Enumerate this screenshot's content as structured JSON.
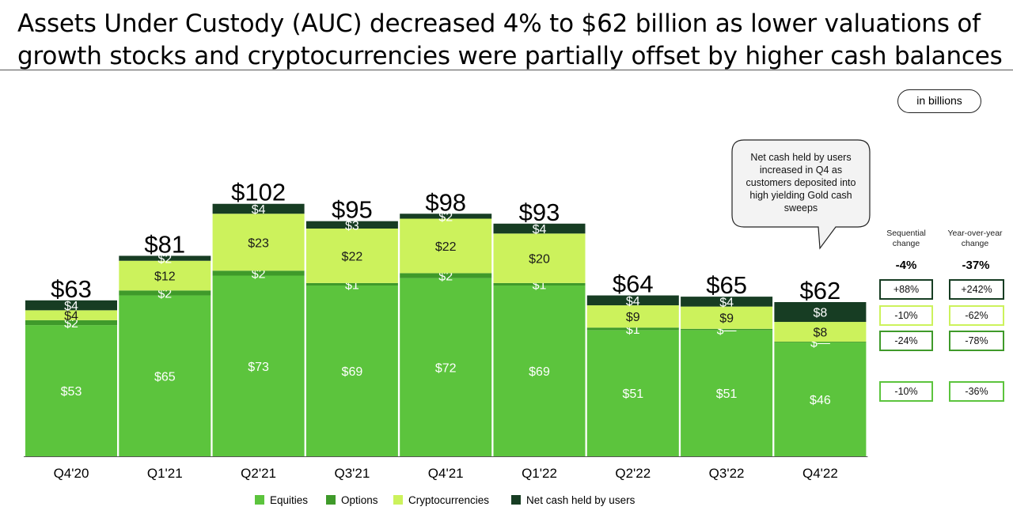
{
  "title": {
    "line1": "Assets Under Custody (AUC) decreased 4% to $62 billion as lower valuations of",
    "line2": "growth stocks and cryptocurrencies were partially offset by higher cash balances"
  },
  "units_label": "in billions",
  "callout": "Net cash held by users increased in Q4 as customers deposited into high yielding Gold cash sweeps",
  "chart_data": {
    "type": "bar",
    "stacked": true,
    "categories": [
      "Q4'20",
      "Q1'21",
      "Q2'21",
      "Q3'21",
      "Q4'21",
      "Q1'22",
      "Q2'22",
      "Q3'22",
      "Q4'22"
    ],
    "totals": [
      "$63",
      "$81",
      "$102",
      "$95",
      "$98",
      "$93",
      "$64",
      "$65",
      "$62"
    ],
    "total_values": [
      63,
      81,
      102,
      95,
      98,
      93,
      64,
      65,
      62
    ],
    "ylim": [
      0,
      110
    ],
    "legend_position": "bottom",
    "series": [
      {
        "name": "Equities",
        "color": "#5cc43d",
        "values": [
          53,
          65,
          73,
          69,
          72,
          69,
          51,
          51,
          46
        ],
        "labels": [
          "$53",
          "$65",
          "$73",
          "$69",
          "$72",
          "$69",
          "$51",
          "$51",
          "$46"
        ]
      },
      {
        "name": "Options",
        "color": "#3f9a2a",
        "values": [
          2,
          2,
          2,
          1,
          2,
          1,
          1,
          0.5,
          0.3
        ],
        "labels": [
          "$2",
          "$2",
          "$2",
          "$1",
          "$2",
          "$1",
          "$1",
          "$—",
          "$—"
        ]
      },
      {
        "name": "Cryptocurrencies",
        "color": "#ccf25c",
        "values": [
          4,
          12,
          23,
          22,
          22,
          20,
          9,
          9,
          8
        ],
        "labels": [
          "$4",
          "$12",
          "$23",
          "$22",
          "$22",
          "$20",
          "$9",
          "$9",
          "$8"
        ]
      },
      {
        "name": "Net cash held by users",
        "color": "#173d23",
        "values": [
          4,
          2,
          4,
          3,
          2,
          4,
          4,
          4,
          8
        ],
        "labels": [
          "$4",
          "$2",
          "$4",
          "$3",
          "$2",
          "$4",
          "$4",
          "$4",
          "$8"
        ]
      }
    ]
  },
  "changes": {
    "sequential_header": "Sequential change",
    "yoy_header": "Year-over-year change",
    "sequential_total": "-4%",
    "yoy_total": "-37%",
    "rows": [
      {
        "series": "Net cash held by users",
        "sequential": "+88%",
        "yoy": "+242%",
        "color": "#173d23"
      },
      {
        "series": "Cryptocurrencies",
        "sequential": "-10%",
        "yoy": "-62%",
        "color": "#ccf25c"
      },
      {
        "series": "Options",
        "sequential": "-24%",
        "yoy": "-78%",
        "color": "#3f9a2a"
      },
      {
        "series": "Equities",
        "sequential": "-10%",
        "yoy": "-36%",
        "color": "#5cc43d"
      }
    ]
  }
}
